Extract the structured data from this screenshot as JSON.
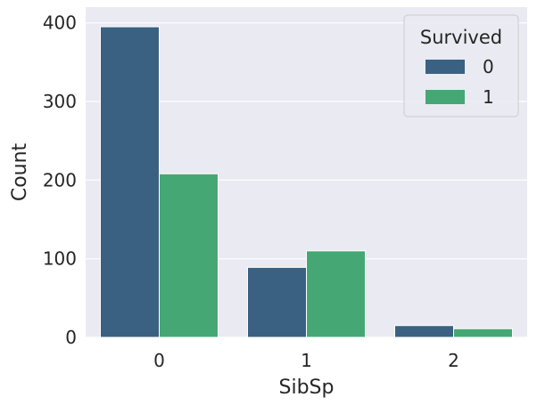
{
  "chart_data": {
    "type": "bar",
    "xlabel": "SibSp",
    "ylabel": "Count",
    "categories": [
      "0",
      "1",
      "2"
    ],
    "ylim": [
      0,
      420
    ],
    "yticks": [
      0,
      100,
      200,
      300,
      400
    ],
    "grid": true,
    "legend_position": "top-right",
    "legend_title": "Survived",
    "series": [
      {
        "name": "0",
        "color": "#3b6182",
        "values": [
          395,
          89,
          15
        ]
      },
      {
        "name": "1",
        "color": "#45a874",
        "values": [
          208,
          110,
          11
        ]
      }
    ]
  },
  "colors": {
    "plot_background": "#eaeaf2",
    "grid": "#ffffff",
    "text": "#262626"
  }
}
